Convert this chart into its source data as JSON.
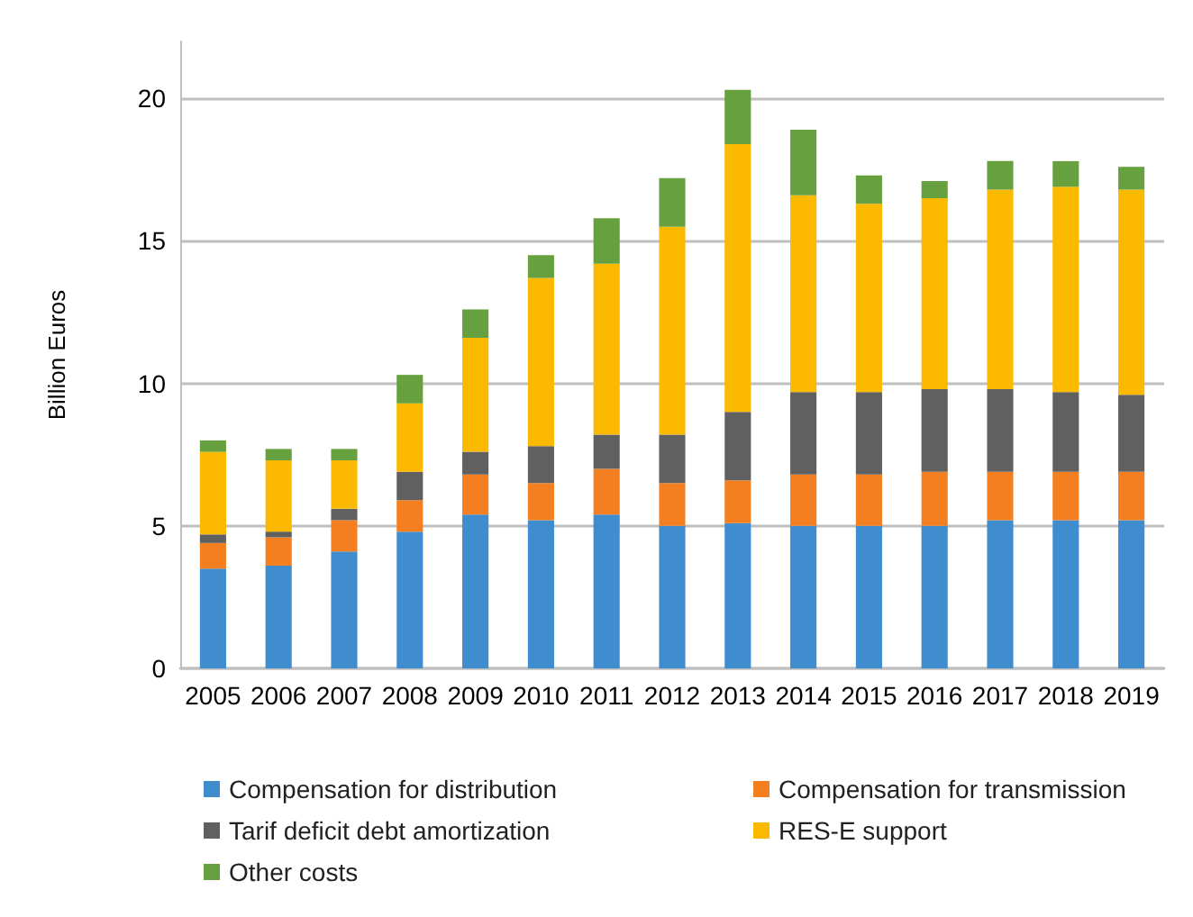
{
  "chart_data": {
    "type": "bar",
    "stacked": true,
    "ylabel": "Billion Euros",
    "categories": [
      "2005",
      "2006",
      "2007",
      "2008",
      "2009",
      "2010",
      "2011",
      "2012",
      "2013",
      "2014",
      "2015",
      "2016",
      "2017",
      "2018",
      "2019"
    ],
    "series": [
      {
        "name": "Compensation for distribution",
        "color": "#3f8dce",
        "values": [
          3.5,
          3.6,
          4.1,
          4.8,
          5.4,
          5.2,
          5.4,
          5.0,
          5.1,
          5.0,
          5.0,
          5.0,
          5.2,
          5.2,
          5.2
        ]
      },
      {
        "name": "Compensation for transmission",
        "color": "#f47f20",
        "values": [
          0.9,
          1.0,
          1.1,
          1.1,
          1.4,
          1.3,
          1.6,
          1.5,
          1.5,
          1.8,
          1.8,
          1.9,
          1.7,
          1.7,
          1.7
        ]
      },
      {
        "name": "Tarif deficit debt amortization",
        "color": "#606060",
        "values": [
          0.3,
          0.2,
          0.4,
          1.0,
          0.8,
          1.3,
          1.2,
          1.7,
          2.4,
          2.9,
          2.9,
          2.9,
          2.9,
          2.8,
          2.7
        ]
      },
      {
        "name": "RES-E support",
        "color": "#fbb900",
        "values": [
          2.9,
          2.5,
          1.7,
          2.4,
          4.0,
          5.9,
          6.0,
          7.3,
          9.4,
          6.9,
          6.6,
          6.7,
          7.0,
          7.2,
          7.2
        ]
      },
      {
        "name": "Other costs",
        "color": "#67a03f",
        "values": [
          0.4,
          0.4,
          0.4,
          1.0,
          1.0,
          0.8,
          1.6,
          1.7,
          1.9,
          2.3,
          1.0,
          0.6,
          1.0,
          0.9,
          0.8
        ]
      }
    ],
    "ylim": [
      0,
      22
    ],
    "yticks": [
      0,
      5,
      10,
      15,
      20
    ],
    "grid": "y",
    "legend": "bottom"
  }
}
